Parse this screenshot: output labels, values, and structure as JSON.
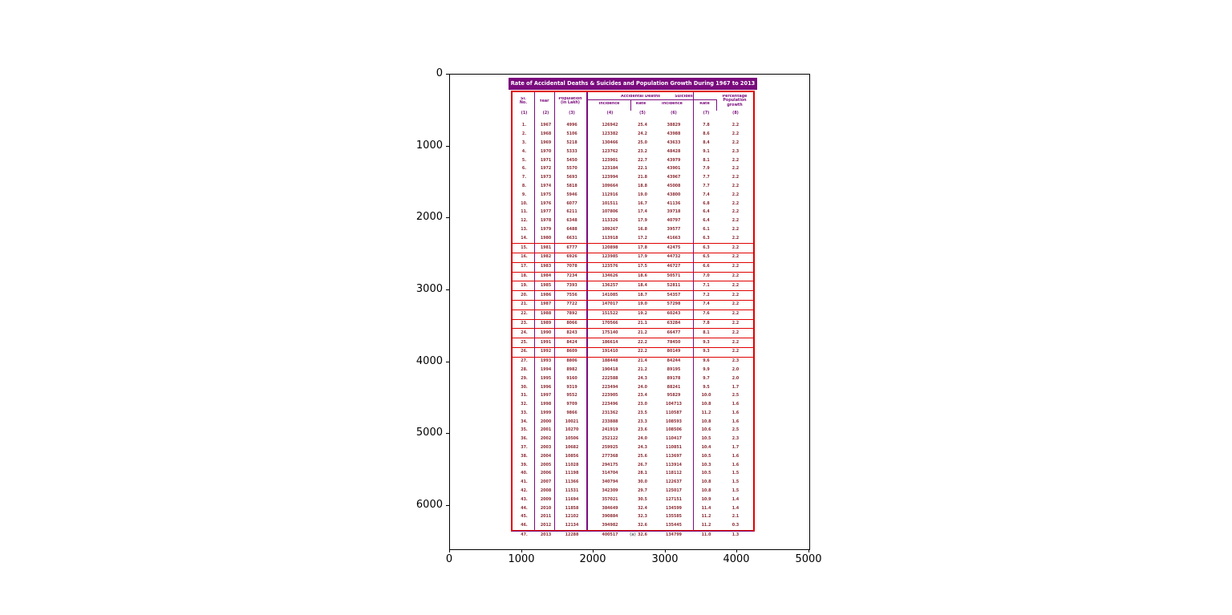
{
  "figure": {
    "caption": "(a)",
    "background": "#ffffff"
  },
  "axes": {
    "y_ticks": [
      "0",
      "1000",
      "2000",
      "3000",
      "4000",
      "5000",
      "6000"
    ],
    "x_ticks": [
      "0",
      "1000",
      "2000",
      "3000",
      "4000",
      "5000"
    ]
  },
  "table": {
    "title": "Rate of Accidental Deaths & Suicides and Population Growth During 1967 to 2013",
    "headers": {
      "sl_no_1": "Sl.",
      "sl_no_2": "No.",
      "year": "Year",
      "population_1": "Population",
      "population_2": "(in Lakh)",
      "accidental_group": "Accidental Deaths",
      "suicides_group": "Suicides",
      "incidence": "Incidence",
      "rate": "Rate",
      "pct_1": "Percentage",
      "pct_2": "Population",
      "pct_3": "growth"
    },
    "col_numbers": [
      "(1)",
      "(2)",
      "(3)",
      "(4)",
      "(5)",
      "(6)",
      "(7)",
      "(8)"
    ],
    "annotation": {
      "highlight_rows_from": 15,
      "highlight_rows_to": 26,
      "color": "#e00000"
    },
    "colors": {
      "title_bar_bg": "#7a0b7d",
      "header_text": "#7b0b7d",
      "data_text": "#8c2b33",
      "grid_lines": "#7b0b7d",
      "annotation_red": "#e00000"
    }
  },
  "chart_data": {
    "type": "table",
    "title": "Rate of Accidental Deaths & Suicides and Population Growth During 1967 to 2013",
    "columns": [
      "Sl. No.",
      "Year",
      "Population (in Lakh)",
      "Accidental Deaths Incidence",
      "Accidental Deaths Rate",
      "Suicides Incidence",
      "Suicides Rate",
      "Percentage Population growth"
    ],
    "rows": [
      [
        "1.",
        "1967",
        "4996",
        "126942",
        "25.4",
        "38829",
        "7.8",
        "2.2"
      ],
      [
        "2.",
        "1968",
        "5106",
        "123382",
        "24.2",
        "43988",
        "8.6",
        "2.2"
      ],
      [
        "3.",
        "1969",
        "5218",
        "130466",
        "25.0",
        "43633",
        "8.4",
        "2.2"
      ],
      [
        "4.",
        "1970",
        "5333",
        "123762",
        "23.2",
        "48428",
        "9.1",
        "2.3"
      ],
      [
        "5.",
        "1971",
        "5450",
        "123901",
        "22.7",
        "43979",
        "8.1",
        "2.2"
      ],
      [
        "6.",
        "1972",
        "5570",
        "123184",
        "22.1",
        "43901",
        "7.9",
        "2.2"
      ],
      [
        "7.",
        "1973",
        "5693",
        "123994",
        "21.8",
        "43967",
        "7.7",
        "2.2"
      ],
      [
        "8.",
        "1974",
        "5818",
        "109664",
        "18.8",
        "45008",
        "7.7",
        "2.2"
      ],
      [
        "9.",
        "1975",
        "5946",
        "112916",
        "19.0",
        "43800",
        "7.4",
        "2.2"
      ],
      [
        "10.",
        "1976",
        "6077",
        "101511",
        "16.7",
        "41136",
        "6.8",
        "2.2"
      ],
      [
        "11.",
        "1977",
        "6211",
        "107806",
        "17.4",
        "39718",
        "6.4",
        "2.2"
      ],
      [
        "12.",
        "1978",
        "6348",
        "113326",
        "17.9",
        "40797",
        "6.4",
        "2.2"
      ],
      [
        "13.",
        "1979",
        "6488",
        "109267",
        "16.8",
        "39577",
        "6.1",
        "2.2"
      ],
      [
        "14.",
        "1980",
        "6631",
        "113918",
        "17.2",
        "41663",
        "6.3",
        "2.2"
      ],
      [
        "15.",
        "1981",
        "6777",
        "120898",
        "17.8",
        "42475",
        "6.3",
        "2.2"
      ],
      [
        "16.",
        "1982",
        "6926",
        "123985",
        "17.9",
        "44732",
        "6.5",
        "2.2"
      ],
      [
        "17.",
        "1983",
        "7078",
        "123576",
        "17.5",
        "46727",
        "6.6",
        "2.2"
      ],
      [
        "18.",
        "1984",
        "7234",
        "134626",
        "18.6",
        "50571",
        "7.0",
        "2.2"
      ],
      [
        "19.",
        "1985",
        "7393",
        "136257",
        "18.4",
        "52811",
        "7.1",
        "2.2"
      ],
      [
        "20.",
        "1986",
        "7556",
        "141085",
        "18.7",
        "54357",
        "7.2",
        "2.2"
      ],
      [
        "21.",
        "1987",
        "7722",
        "147017",
        "19.0",
        "57298",
        "7.4",
        "2.2"
      ],
      [
        "22.",
        "1988",
        "7892",
        "151522",
        "19.2",
        "60243",
        "7.6",
        "2.2"
      ],
      [
        "23.",
        "1989",
        "8066",
        "170566",
        "21.1",
        "63284",
        "7.8",
        "2.2"
      ],
      [
        "24.",
        "1990",
        "8243",
        "175140",
        "21.2",
        "66477",
        "8.1",
        "2.2"
      ],
      [
        "25.",
        "1991",
        "8424",
        "186614",
        "22.2",
        "78450",
        "9.3",
        "2.2"
      ],
      [
        "26.",
        "1992",
        "8609",
        "191410",
        "22.2",
        "80149",
        "9.3",
        "2.2"
      ],
      [
        "27.",
        "1993",
        "8806",
        "188448",
        "21.4",
        "84244",
        "9.6",
        "2.3"
      ],
      [
        "28.",
        "1994",
        "8982",
        "190418",
        "21.2",
        "89195",
        "9.9",
        "2.0"
      ],
      [
        "29.",
        "1995",
        "9160",
        "222588",
        "24.3",
        "89178",
        "9.7",
        "2.0"
      ],
      [
        "30.",
        "1996",
        "9319",
        "223494",
        "24.0",
        "88241",
        "9.5",
        "1.7"
      ],
      [
        "31.",
        "1997",
        "9552",
        "223905",
        "23.4",
        "95829",
        "10.0",
        "2.5"
      ],
      [
        "32.",
        "1998",
        "9709",
        "223496",
        "23.0",
        "104713",
        "10.8",
        "1.6"
      ],
      [
        "33.",
        "1999",
        "9866",
        "231362",
        "23.5",
        "110587",
        "11.2",
        "1.6"
      ],
      [
        "34.",
        "2000",
        "10021",
        "233888",
        "23.3",
        "108593",
        "10.8",
        "1.6"
      ],
      [
        "35.",
        "2001",
        "10270",
        "241919",
        "23.6",
        "108506",
        "10.6",
        "2.5"
      ],
      [
        "36.",
        "2002",
        "10506",
        "252122",
        "24.0",
        "110417",
        "10.5",
        "2.3"
      ],
      [
        "37.",
        "2003",
        "10682",
        "259925",
        "24.3",
        "110851",
        "10.4",
        "1.7"
      ],
      [
        "38.",
        "2004",
        "10856",
        "277368",
        "25.6",
        "113697",
        "10.5",
        "1.6"
      ],
      [
        "39.",
        "2005",
        "11028",
        "294175",
        "26.7",
        "113914",
        "10.3",
        "1.6"
      ],
      [
        "40.",
        "2006",
        "11198",
        "314704",
        "28.1",
        "118112",
        "10.5",
        "1.5"
      ],
      [
        "41.",
        "2007",
        "11366",
        "340794",
        "30.0",
        "122637",
        "10.8",
        "1.5"
      ],
      [
        "42.",
        "2008",
        "11531",
        "342309",
        "29.7",
        "125017",
        "10.8",
        "1.5"
      ],
      [
        "43.",
        "2009",
        "11694",
        "357021",
        "30.5",
        "127151",
        "10.9",
        "1.4"
      ],
      [
        "44.",
        "2010",
        "11858",
        "384649",
        "32.4",
        "134599",
        "11.4",
        "1.4"
      ],
      [
        "45.",
        "2011",
        "12102",
        "390884",
        "32.3",
        "135585",
        "11.2",
        "2.1"
      ],
      [
        "46.",
        "2012",
        "12134",
        "394982",
        "32.6",
        "135445",
        "11.2",
        "0.3"
      ],
      [
        "47.",
        "2013",
        "12288",
        "400517",
        "32.6",
        "134799",
        "11.0",
        "1.3"
      ]
    ]
  }
}
